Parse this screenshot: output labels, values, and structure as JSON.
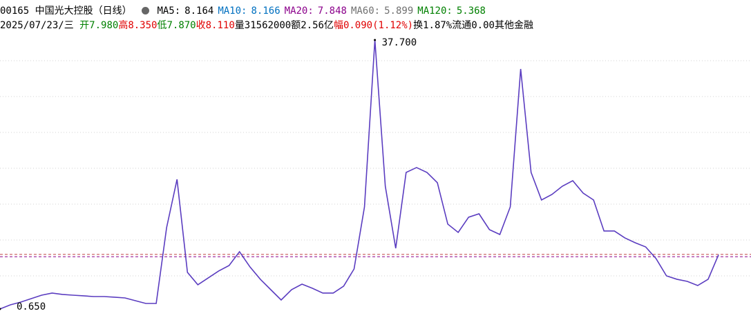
{
  "header": {
    "title": "00165 中国光大控股（日线）",
    "ma": [
      {
        "label": "MA5:",
        "value": "8.164",
        "color": "#000000"
      },
      {
        "label": "MA10:",
        "value": "8.166",
        "color": "#0070c0"
      },
      {
        "label": "MA20:",
        "value": "7.848",
        "color": "#8b008b"
      },
      {
        "label": "MA60:",
        "value": "5.899",
        "color": "#707070"
      },
      {
        "label": "MA120:",
        "value": "5.368",
        "color": "#008000"
      }
    ],
    "date": "2025/07/23/三",
    "quote": [
      {
        "label": "开",
        "value": "7.980",
        "color": "#008000"
      },
      {
        "label": "高",
        "value": "8.350",
        "color": "#e00000"
      },
      {
        "label": "低",
        "value": "7.870",
        "color": "#008000"
      },
      {
        "label": "收",
        "value": "8.110",
        "color": "#e00000"
      },
      {
        "label": "量",
        "value": "31562000",
        "color": "#000000"
      },
      {
        "label": "额",
        "value": "2.56亿",
        "color": "#000000"
      },
      {
        "label": "幅",
        "value": "0.090(1.12%)",
        "color": "#e00000"
      },
      {
        "label": "换",
        "value": "1.87%",
        "color": "#000000"
      },
      {
        "label": "流通",
        "value": "0.00",
        "color": "#000000"
      }
    ],
    "sector": "其他金融"
  },
  "chart_data": {
    "type": "line",
    "ylim": [
      0.65,
      37.7
    ],
    "color": "#5a3cc0",
    "values": [
      0.65,
      1.22,
      1.6,
      2.08,
      2.55,
      2.84,
      2.65,
      2.55,
      2.46,
      2.36,
      2.36,
      2.27,
      2.17,
      1.79,
      1.41,
      1.41,
      11.86,
      18.5,
      5.69,
      3.98,
      4.93,
      5.88,
      6.64,
      8.54,
      6.45,
      4.74,
      3.31,
      1.89,
      3.31,
      4.07,
      3.5,
      2.84,
      2.84,
      3.79,
      6.16,
      14.71,
      37.7,
      17.56,
      9.01,
      19.46,
      20.13,
      19.46,
      18.04,
      12.34,
      11.2,
      13.29,
      13.76,
      11.58,
      10.91,
      14.71,
      33.71,
      19.46,
      15.66,
      16.42,
      17.56,
      18.32,
      16.61,
      15.66,
      11.39,
      11.39,
      10.44,
      9.77,
      9.2,
      7.59,
      5.21,
      4.74,
      4.45,
      3.88,
      4.74,
      8.11
    ],
    "annotations": [
      {
        "label": "37.700",
        "value": 37.7
      },
      {
        "label": "0.650",
        "value": 0.65
      }
    ],
    "ref_lines": [
      8.164,
      7.848
    ]
  }
}
